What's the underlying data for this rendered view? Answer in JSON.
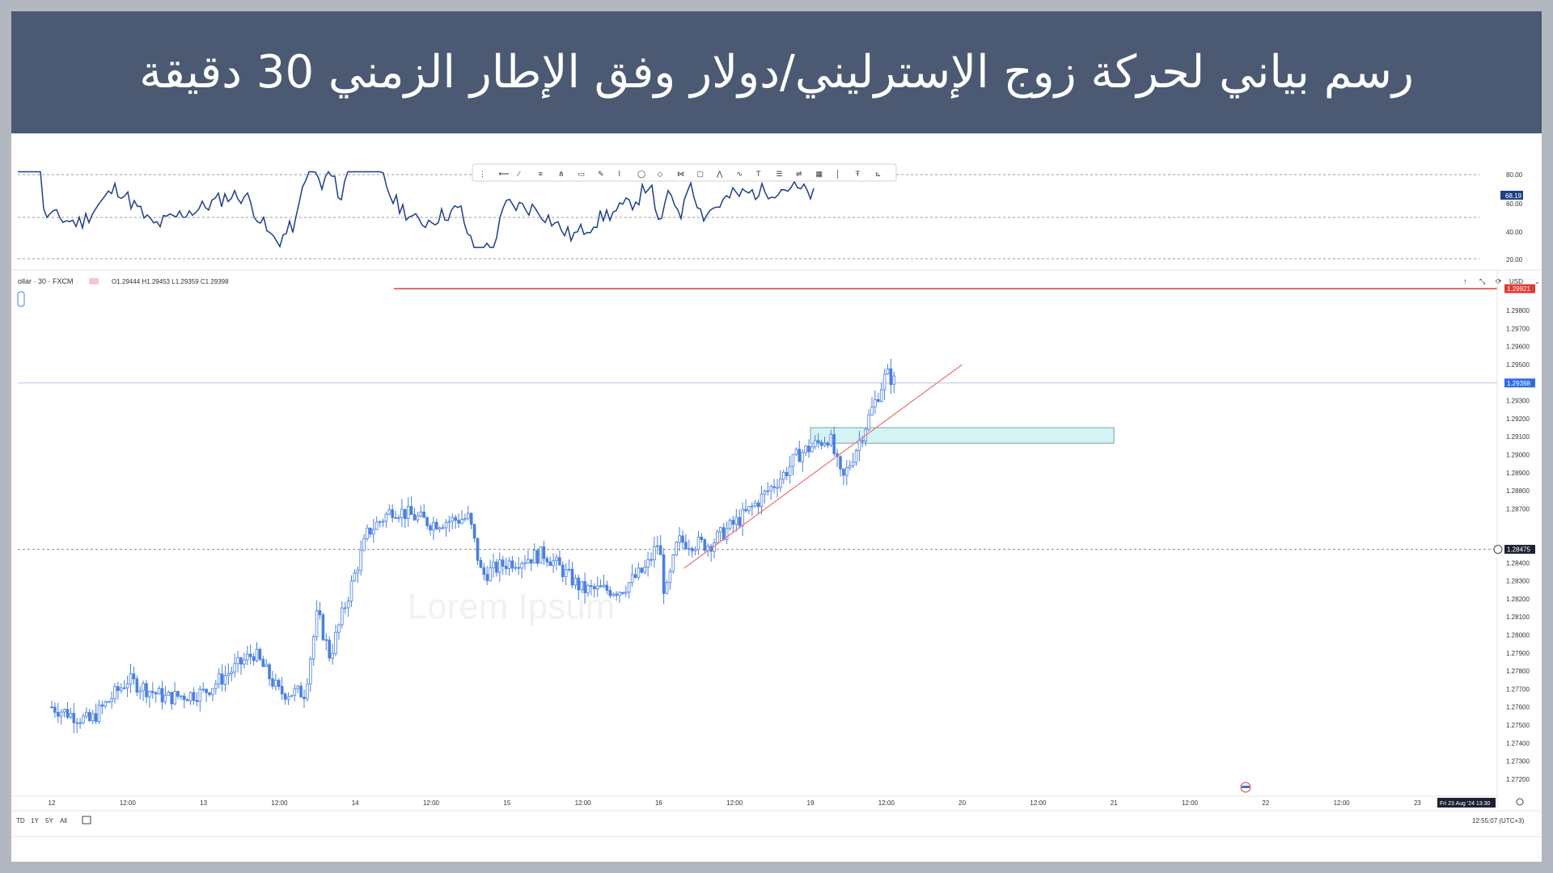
{
  "banner": {
    "title": "رسم بياني لحركة زوج الإسترليني/دولار وفق الإطار الزمني 30 دقيقة"
  },
  "legend": {
    "symbol": "ollar · 30 · FXCM",
    "ohlc": "O1.29444 H1.29453 L1.29359 C1.29398"
  },
  "watermark": "Lorem Ipsum",
  "colors": {
    "banner": "#4b5a72",
    "candle": "#4a7fe0",
    "indicator_line": "#1f3f8a",
    "resistance_line": "#e53935",
    "trendline": "#ef7070",
    "zone_fill": "#d5f3f5",
    "zone_border": "#6aa6ad"
  },
  "currency_label": "USD",
  "indicator": {
    "levels": [
      "80.00",
      "60.00",
      "40.00",
      "20.00"
    ],
    "current_label": "68.19"
  },
  "price_axis": {
    "labels": [
      "1.29800",
      "1.29700",
      "1.29600",
      "1.29500",
      "1.29300",
      "1.29200",
      "1.29100",
      "1.29000",
      "1.28900",
      "1.28800",
      "1.28700",
      "1.28400",
      "1.28300",
      "1.28200",
      "1.28100",
      "1.28000",
      "1.27900",
      "1.27800",
      "1.27700",
      "1.27600",
      "1.27500",
      "1.27400",
      "1.27300",
      "1.27200"
    ],
    "resistance_label": "1.29921",
    "current_label": "1.29398",
    "support_label": "1.28475"
  },
  "time_axis": {
    "labels": [
      "12",
      "12:00",
      "13",
      "12:00",
      "14",
      "12:00",
      "15",
      "12:00",
      "16",
      "12:00",
      "19",
      "12:00",
      "20",
      "12:00",
      "21",
      "12:00",
      "22",
      "12:00",
      "23"
    ],
    "crosshair_label": "Fri 23 Aug '24  13:30"
  },
  "bottom_bar": {
    "ranges": [
      "TD",
      "1Y",
      "5Y",
      "All"
    ],
    "clock": "12:55:07 (UTC+3)"
  },
  "toolbar_icons": [
    "drag-handle-icon",
    "horizontal-ray-icon",
    "trend-line-icon",
    "parallel-channel-icon",
    "pitchfork-icon",
    "rectangle-icon",
    "brush-icon",
    "path-icon",
    "circle-icon",
    "rotated-rectangle-icon",
    "xabcd-pattern-icon",
    "callout-icon",
    "abcd-pattern-icon",
    "polyline-icon",
    "text-icon",
    "fib-retracement-icon",
    "fib-extension-icon",
    "grid-icon",
    "vertical-line-icon",
    "anchored-text-icon",
    "measure-icon"
  ],
  "chart_data": {
    "type": "candlestick",
    "title": "رسم بياني لحركة زوج الإسترليني/دولار وفق الإطار الزمني 30 دقيقة",
    "symbol": "GBP/USD",
    "timeframe": "30",
    "x_range": [
      "2024-08-12",
      "2024-08-23"
    ],
    "ylim": [
      1.2715,
      1.2998
    ],
    "close_path": [
      [
        "2024-08-12 00:00",
        1.276
      ],
      [
        "2024-08-12 06:00",
        1.2752
      ],
      [
        "2024-08-12 12:00",
        1.2775
      ],
      [
        "2024-08-12 18:00",
        1.2765
      ],
      [
        "2024-08-13 00:00",
        1.2768
      ],
      [
        "2024-08-13 08:00",
        1.279
      ],
      [
        "2024-08-13 12:00",
        1.2768
      ],
      [
        "2024-08-13 16:00",
        1.2768
      ],
      [
        "2024-08-13 18:00",
        1.2812
      ],
      [
        "2024-08-13 20:00",
        1.2788
      ],
      [
        "2024-08-13 22:00",
        1.2812
      ],
      [
        "2024-08-14 02:00",
        1.2857
      ],
      [
        "2024-08-14 06:00",
        1.287
      ],
      [
        "2024-08-14 12:00",
        1.2862
      ],
      [
        "2024-08-14 18:00",
        1.2865
      ],
      [
        "2024-08-14 20:00",
        1.2833
      ],
      [
        "2024-08-15 00:00",
        1.284
      ],
      [
        "2024-08-15 06:00",
        1.2845
      ],
      [
        "2024-08-15 12:00",
        1.2825
      ],
      [
        "2024-08-15 18:00",
        1.2825
      ],
      [
        "2024-08-15 22:00",
        1.2837
      ],
      [
        "2024-08-16 00:00",
        1.2852
      ],
      [
        "2024-08-16 01:00",
        1.282
      ],
      [
        "2024-08-16 03:00",
        1.2852
      ],
      [
        "2024-08-16 08:00",
        1.285
      ],
      [
        "2024-08-16 14:00",
        1.2868
      ],
      [
        "2024-08-16 20:00",
        1.289
      ],
      [
        "2024-08-16 22:00",
        1.29
      ],
      [
        "2024-08-19 03:00",
        1.291
      ],
      [
        "2024-08-19 05:00",
        1.2885
      ],
      [
        "2024-08-19 08:00",
        1.291
      ],
      [
        "2024-08-19 12:00",
        1.2945
      ],
      [
        "2024-08-19 13:30",
        1.29398
      ]
    ],
    "last_bar": {
      "open": 1.29444,
      "high": 1.29453,
      "low": 1.29359,
      "close": 1.29398
    },
    "horizontal_levels": [
      {
        "price": 1.29921,
        "label": "1.29921"
      },
      {
        "price": 1.29398,
        "label": "1.29398"
      },
      {
        "price": 1.28475,
        "label": "1.28475"
      }
    ],
    "trendline": {
      "from": [
        "2024-08-16 04:00",
        1.2837
      ],
      "to": [
        "2024-08-20 00:00",
        1.295
      ]
    },
    "zone": {
      "from": "2024-08-19 00:00",
      "to": "2024-08-21 00:00",
      "low": 1.291,
      "high": 1.2915
    },
    "indicator_panel": {
      "levels": [
        80,
        60,
        40,
        20
      ],
      "current": 68.19
    }
  }
}
